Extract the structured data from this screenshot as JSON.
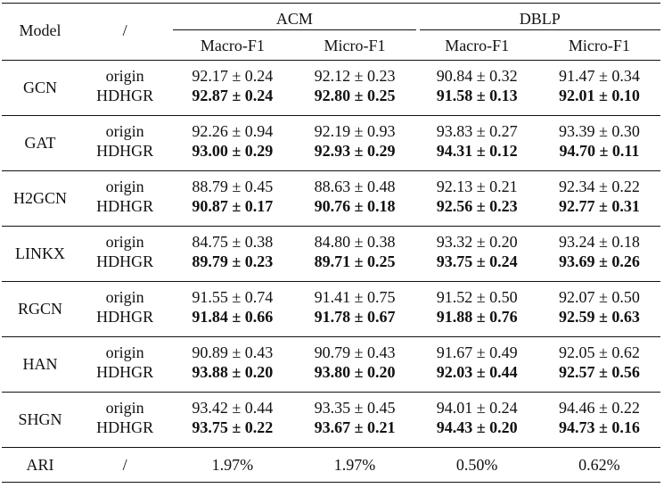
{
  "header": {
    "model": "Model",
    "variant": "/",
    "datasets": [
      "ACM",
      "DBLP"
    ],
    "metrics": [
      "Macro-F1",
      "Micro-F1",
      "Macro-F1",
      "Micro-F1"
    ]
  },
  "rows": [
    {
      "model": "GCN",
      "origin": {
        "label": "origin",
        "values": [
          "92.17 ± 0.24",
          "92.12 ± 0.23",
          "90.84 ± 0.32",
          "91.47 ± 0.34"
        ]
      },
      "hdhgr": {
        "label": "HDHGR",
        "values": [
          "92.87 ± 0.24",
          "92.80 ± 0.25",
          "91.58 ± 0.13",
          "92.01 ± 0.10"
        ]
      }
    },
    {
      "model": "GAT",
      "origin": {
        "label": "origin",
        "values": [
          "92.26 ± 0.94",
          "92.19 ± 0.93",
          "93.83 ± 0.27",
          "93.39 ± 0.30"
        ]
      },
      "hdhgr": {
        "label": "HDHGR",
        "values": [
          "93.00 ± 0.29",
          "92.93 ± 0.29",
          "94.31 ± 0.12",
          "94.70 ± 0.11"
        ]
      }
    },
    {
      "model": "H2GCN",
      "origin": {
        "label": "origin",
        "values": [
          "88.79 ± 0.45",
          "88.63 ± 0.48",
          "92.13 ± 0.21",
          "92.34 ± 0.22"
        ]
      },
      "hdhgr": {
        "label": "HDHGR",
        "values": [
          "90.87 ± 0.17",
          "90.76 ± 0.18",
          "92.56 ± 0.23",
          "92.77 ± 0.31"
        ]
      }
    },
    {
      "model": "LINKX",
      "origin": {
        "label": "origin",
        "values": [
          "84.75 ± 0.38",
          "84.80 ± 0.38",
          "93.32 ± 0.20",
          "93.24 ± 0.18"
        ]
      },
      "hdhgr": {
        "label": "HDHGR",
        "values": [
          "89.79 ± 0.23",
          "89.71 ± 0.25",
          "93.75 ± 0.24",
          "93.69 ± 0.26"
        ]
      }
    },
    {
      "model": "RGCN",
      "origin": {
        "label": "origin",
        "values": [
          "91.55 ± 0.74",
          "91.41 ± 0.75",
          "91.52 ± 0.50",
          "92.07 ± 0.50"
        ]
      },
      "hdhgr": {
        "label": "HDHGR",
        "values": [
          "91.84 ± 0.66",
          "91.78 ± 0.67",
          "91.88 ± 0.76",
          "92.59 ± 0.63"
        ]
      }
    },
    {
      "model": "HAN",
      "origin": {
        "label": "origin",
        "values": [
          "90.89 ± 0.43",
          "90.79 ± 0.43",
          "91.67 ± 0.49",
          "92.05 ± 0.62"
        ]
      },
      "hdhgr": {
        "label": "HDHGR",
        "values": [
          "93.88 ± 0.20",
          "93.80 ± 0.20",
          "92.03 ± 0.44",
          "92.57 ± 0.56"
        ]
      }
    },
    {
      "model": "SHGN",
      "origin": {
        "label": "origin",
        "values": [
          "93.42 ± 0.44",
          "93.35 ± 0.45",
          "94.01 ± 0.24",
          "94.46 ± 0.22"
        ]
      },
      "hdhgr": {
        "label": "HDHGR",
        "values": [
          "93.75 ± 0.22",
          "93.67 ± 0.21",
          "94.43 ± 0.20",
          "94.73 ± 0.16"
        ]
      }
    }
  ],
  "ari": {
    "label": "ARI",
    "variant": "/",
    "values": [
      "1.97%",
      "1.97%",
      "0.50%",
      "0.62%"
    ]
  }
}
